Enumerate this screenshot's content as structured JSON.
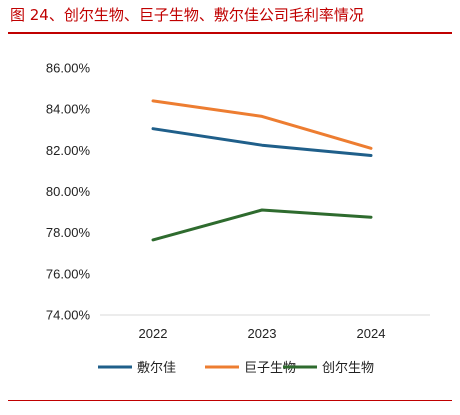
{
  "title": "图 24、创尔生物、巨子生物、敷尔佳公司毛利率情况",
  "chart_data": {
    "type": "line",
    "title": "图 24、创尔生物、巨子生物、敷尔佳公司毛利率情况",
    "categories": [
      "2022",
      "2023",
      "2024"
    ],
    "ylim": [
      74,
      86
    ],
    "yticks": [
      "74.00%",
      "76.00%",
      "78.00%",
      "80.00%",
      "82.00%",
      "84.00%",
      "86.00%"
    ],
    "grid": false,
    "legend_position": "bottom",
    "series": [
      {
        "name": "敷尔佳",
        "color": "#1f5f8a",
        "values": [
          83.05,
          82.25,
          81.75
        ]
      },
      {
        "name": "巨子生物",
        "color": "#ed7d31",
        "values": [
          84.4,
          83.65,
          82.1
        ]
      },
      {
        "name": "创尔生物",
        "color": "#2e6b2e",
        "values": [
          77.65,
          79.1,
          78.75
        ]
      }
    ]
  }
}
